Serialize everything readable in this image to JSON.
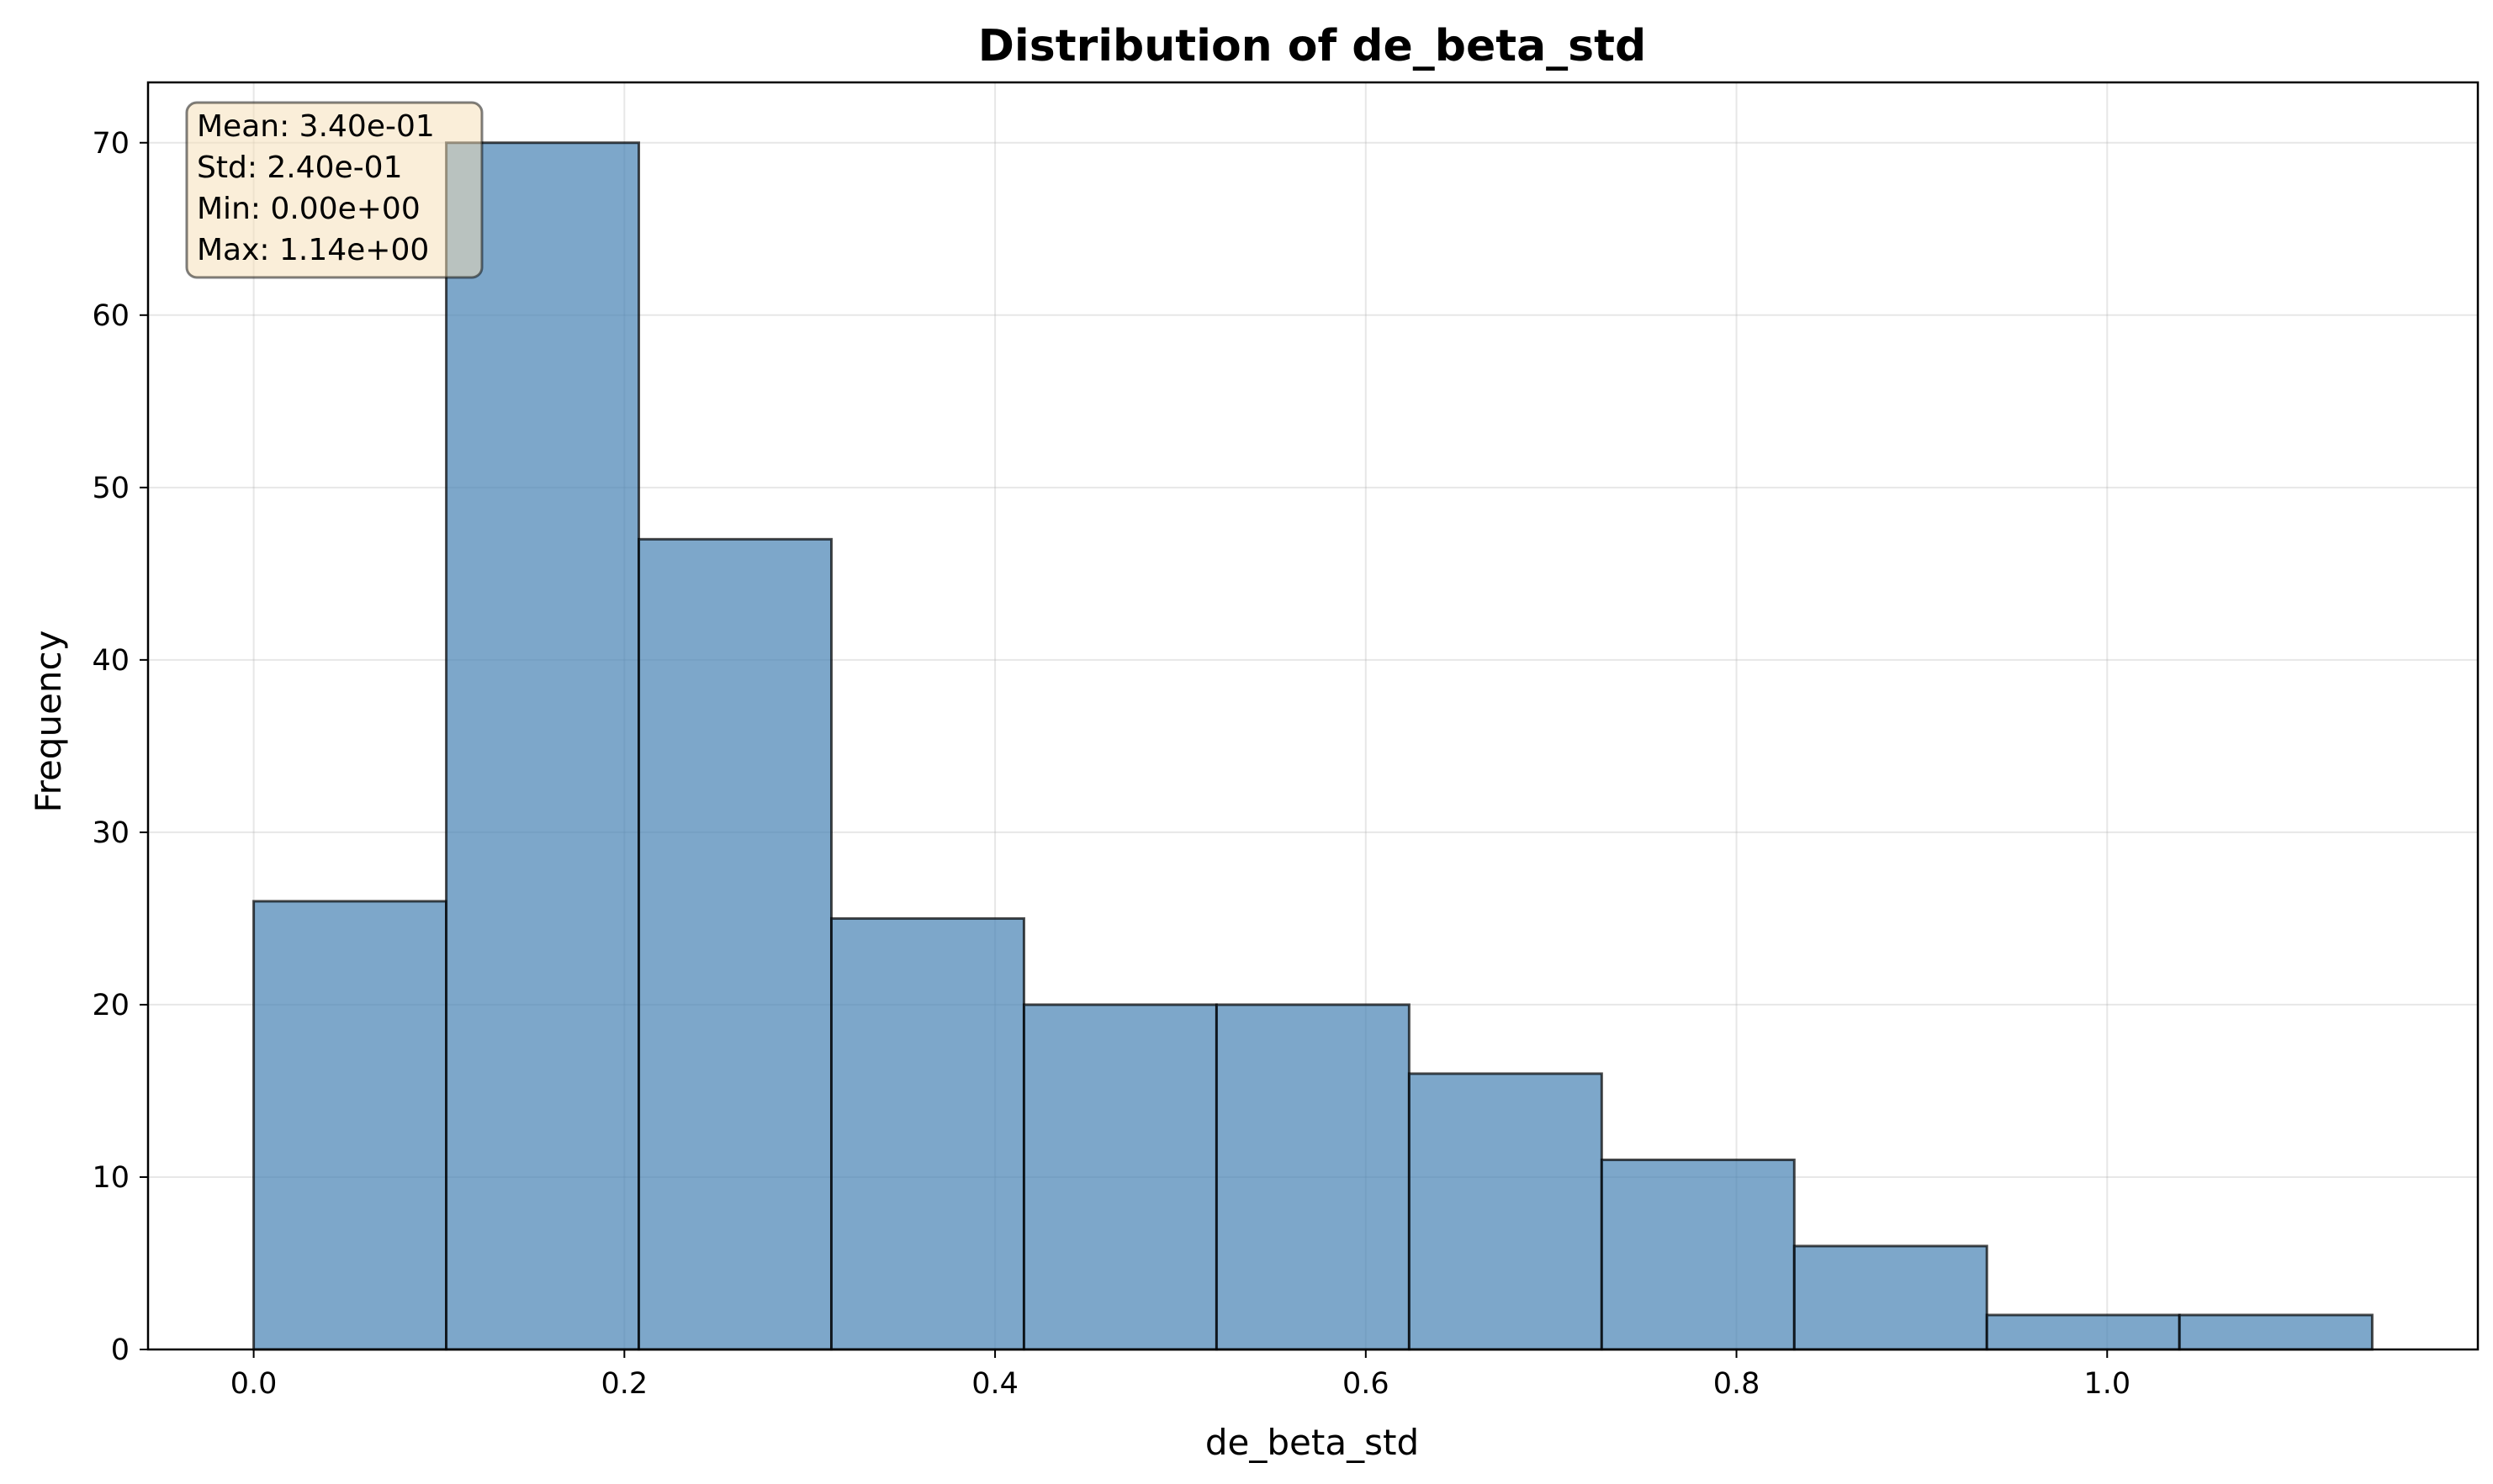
{
  "chart_data": {
    "type": "bar",
    "title": "Distribution of de_beta_std",
    "xlabel": "de_beta_std",
    "ylabel": "Frequency",
    "xlim": [
      -0.057,
      1.2
    ],
    "ylim": [
      0,
      73.5
    ],
    "x_ticks": [
      0.0,
      0.2,
      0.4,
      0.6,
      0.8,
      1.0
    ],
    "x_tick_labels": [
      "0.0",
      "0.2",
      "0.4",
      "0.6",
      "0.8",
      "1.0"
    ],
    "y_ticks": [
      0,
      10,
      20,
      30,
      40,
      50,
      60,
      70
    ],
    "y_tick_labels": [
      "0",
      "10",
      "20",
      "30",
      "40",
      "50",
      "60",
      "70"
    ],
    "bin_edges": [
      0.0,
      0.1039,
      0.2078,
      0.3117,
      0.4156,
      0.5195,
      0.6234,
      0.7273,
      0.8312,
      0.9351,
      1.039,
      1.143
    ],
    "values": [
      26,
      70,
      47,
      25,
      20,
      20,
      16,
      11,
      6,
      2,
      2
    ],
    "grid": true,
    "bar_color": "#4682b4",
    "stats_box": {
      "placement": "top-left",
      "lines": [
        "Mean: 3.40e-01",
        "Std: 2.40e-01",
        "Min: 0.00e+00",
        "Max: 1.14e+00"
      ]
    }
  }
}
